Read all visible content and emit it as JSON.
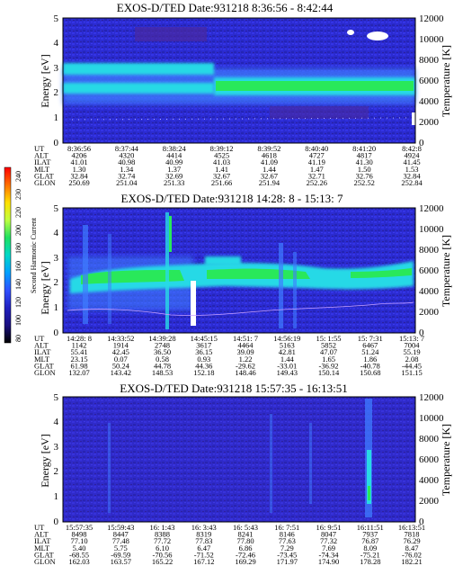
{
  "colors": {
    "background": "#2b2bd0",
    "band_strong": "#28d9e6",
    "band_mid": "#3f7cff",
    "band_core": "#29e85a",
    "hot": "#ffffff"
  },
  "colorbar": {
    "label": "Second Harmonic Current",
    "ticks": [
      "240",
      "230",
      "220",
      "200",
      "180",
      "160",
      "140",
      "120",
      "100",
      "80"
    ],
    "colors": [
      "#ff0000",
      "#ff6a00",
      "#ffd000",
      "#ffff40",
      "#80ff40",
      "#00e060",
      "#00d8c8",
      "#00a0ff",
      "#3050ff",
      "#2020c0",
      "#1a0f80",
      "#000000"
    ]
  },
  "chart_data": [
    {
      "type": "heatmap",
      "title": "EXOS-D/TED   Date:931218   8:36:56 - 8:42:44",
      "ylabel": "Energy [eV]",
      "y2label": "Temperature [K]",
      "ylim": [
        0,
        5
      ],
      "y_ticks": [
        "0",
        "1",
        "2",
        "3",
        "4",
        "5"
      ],
      "y2lim": [
        0,
        12000
      ],
      "y2_ticks": [
        "0",
        "2000",
        "4000",
        "6000",
        "8000",
        "10000",
        "12000"
      ],
      "bands": [
        {
          "energy": 2.3,
          "level": "core",
          "start": 0.42,
          "end": 1.0
        },
        {
          "energy": 2.8,
          "level": "strong",
          "start": 0.0,
          "end": 0.42
        },
        {
          "energy": 2.45,
          "level": "strong",
          "start": 0.0,
          "end": 1.0
        }
      ],
      "ephemeris": {
        "labels": [
          "UT",
          "ALT",
          "ILAT",
          "MLT",
          "GLAT",
          "GLON"
        ],
        "columns": [
          [
            "8:36:56",
            "4206",
            "41.01",
            "1.30",
            "32.84",
            "250.69"
          ],
          [
            "8:37:44",
            "4320",
            "40.98",
            "1.34",
            "32.74",
            "251.04"
          ],
          [
            "8:38:24",
            "4414",
            "40.99",
            "1.37",
            "32.69",
            "251.33"
          ],
          [
            "8:39:12",
            "4525",
            "41.03",
            "1.41",
            "32.67",
            "251.66"
          ],
          [
            "8:39:52",
            "4618",
            "41.09",
            "1.44",
            "32.67",
            "251.94"
          ],
          [
            "8:40:40",
            "4727",
            "41.19",
            "1.47",
            "32.71",
            "252.26"
          ],
          [
            "8:41:20",
            "4817",
            "41.30",
            "1.50",
            "32.76",
            "252.52"
          ],
          [
            "8:42:8",
            "4924",
            "41.45",
            "1.53",
            "32.84",
            "252.84"
          ]
        ]
      }
    },
    {
      "type": "heatmap",
      "title": "EXOS-D/TED   Date:931218   14:28: 8 - 15:13: 7",
      "ylabel": "Energy [eV]",
      "y2label": "Temperature [K]",
      "ylim": [
        0,
        5
      ],
      "y_ticks": [
        "0",
        "1",
        "2",
        "3",
        "4",
        "5"
      ],
      "y2lim": [
        0,
        12000
      ],
      "y2_ticks": [
        "0",
        "2000",
        "4000",
        "6000",
        "8000",
        "10000",
        "12000"
      ],
      "ephemeris": {
        "labels": [
          "UT",
          "ALT",
          "ILAT",
          "MLT",
          "GLAT",
          "GLON"
        ],
        "columns": [
          [
            "14:28: 8",
            "1142",
            "55.41",
            "23.15",
            "61.98",
            "132.07"
          ],
          [
            "14:33:52",
            "1914",
            "42.45",
            "0.07",
            "50.24",
            "143.42"
          ],
          [
            "14:39:28",
            "2748",
            "36.50",
            "0.58",
            "44.78",
            "148.53"
          ],
          [
            "14:45:15",
            "3617",
            "36.15",
            "0.93",
            "44.36",
            "152.18"
          ],
          [
            "14:51: 7",
            "4464",
            "39.09",
            "1.22",
            "-29.62",
            "148.46"
          ],
          [
            "14:56:19",
            "5163",
            "42.81",
            "1.44",
            "-33.01",
            "149.43"
          ],
          [
            "15: 1:55",
            "5852",
            "47.07",
            "1.65",
            "-36.92",
            "150.14"
          ],
          [
            "15: 7:31",
            "6467",
            "51.24",
            "1.86",
            "-40.78",
            "150.68"
          ],
          [
            "15:13: 7",
            "7004",
            "55.19",
            "2.08",
            "-44.45",
            "151.15"
          ]
        ]
      }
    },
    {
      "type": "heatmap",
      "title": "EXOS-D/TED   Date:931218   15:57:35 - 16:13:51",
      "ylabel": "Energy [eV]",
      "y2label": "Temperature [K]",
      "ylim": [
        0,
        5
      ],
      "y_ticks": [
        "0",
        "1",
        "2",
        "3",
        "4",
        "5"
      ],
      "y2lim": [
        0,
        12000
      ],
      "y2_ticks": [
        "0",
        "2000",
        "4000",
        "6000",
        "8000",
        "10000",
        "12000"
      ],
      "ephemeris": {
        "labels": [
          "UT",
          "ALT",
          "ILAT",
          "MLT",
          "GLAT",
          "GLON"
        ],
        "columns": [
          [
            "15:57:35",
            "8498",
            "77.10",
            "5.40",
            "-68.55",
            "162.03"
          ],
          [
            "15:59:43",
            "8447",
            "77.48",
            "5.75",
            "-69.59",
            "163.57"
          ],
          [
            "16: 1:43",
            "8388",
            "77.72",
            "6.10",
            "-70.56",
            "165.22"
          ],
          [
            "16: 3:43",
            "8319",
            "77.83",
            "6.47",
            "-71.52",
            "167.12"
          ],
          [
            "16: 5:43",
            "8241",
            "77.80",
            "6.86",
            "-72.46",
            "169.29"
          ],
          [
            "16: 7:51",
            "8146",
            "77.63",
            "7.29",
            "-73.45",
            "171.97"
          ],
          [
            "16: 9:51",
            "8047",
            "77.32",
            "7.69",
            "-74.34",
            "174.90"
          ],
          [
            "16:11:51",
            "7937",
            "76.87",
            "8.09",
            "-75.21",
            "178.28"
          ],
          [
            "16:13:51",
            "7818",
            "76.29",
            "8.47",
            "-76.02",
            "182.21"
          ]
        ]
      }
    }
  ]
}
